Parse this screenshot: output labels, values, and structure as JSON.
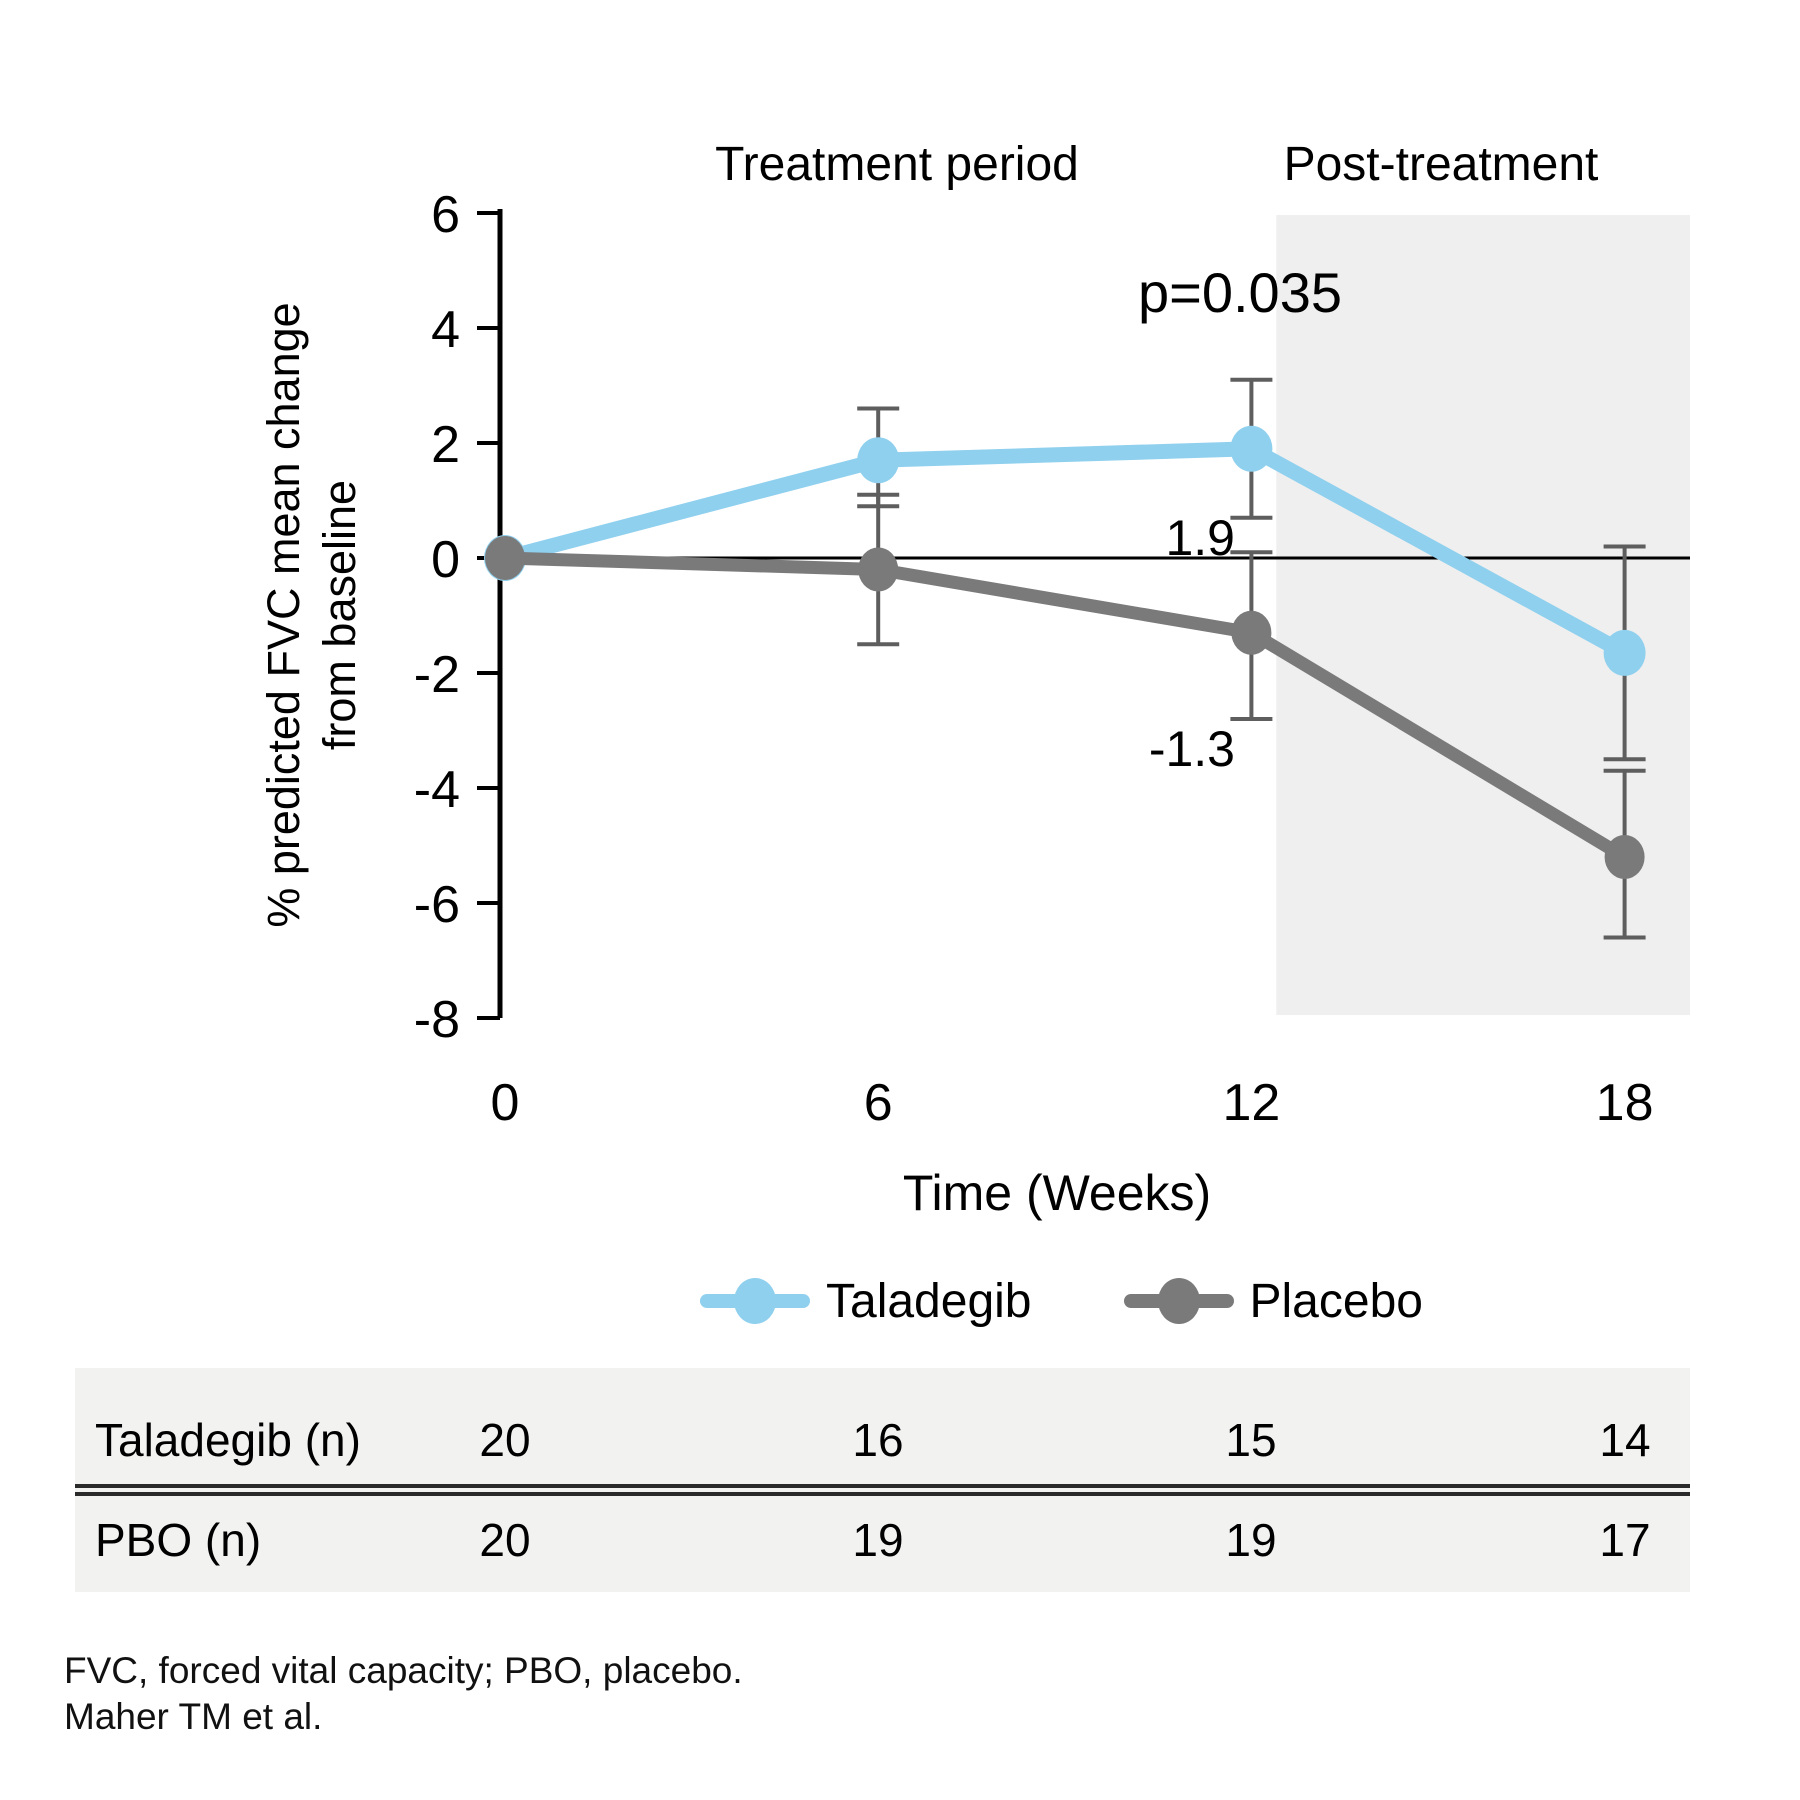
{
  "chart_data": {
    "type": "line",
    "title": "",
    "xlabel": "Time (Weeks)",
    "ylabel_line1": "% predicted FVC mean change",
    "ylabel_line2": "from baseline",
    "x": [
      0,
      6,
      12,
      18
    ],
    "x_ticks": [
      "0",
      "6",
      "12",
      "18"
    ],
    "y_ticks": [
      "6",
      "4",
      "2",
      "0",
      "-2",
      "-4",
      "-6",
      "-8"
    ],
    "ylim": [
      -8,
      6
    ],
    "xlim": [
      0,
      19
    ],
    "grid": false,
    "legend_position": "bottom",
    "series": [
      {
        "name": "Taladegib",
        "color": "#8fd0ee",
        "values": [
          0,
          1.7,
          1.9,
          -1.65
        ],
        "err_lo": [
          null,
          0.9,
          0.7,
          -3.5
        ],
        "err_hi": [
          null,
          2.6,
          3.1,
          0.2
        ]
      },
      {
        "name": "Placebo",
        "color": "#7a7a7a",
        "values": [
          0,
          -0.2,
          -1.3,
          -5.2
        ],
        "err_lo": [
          null,
          -1.5,
          -2.8,
          -6.6
        ],
        "err_hi": [
          null,
          1.1,
          0.1,
          -3.7
        ]
      }
    ],
    "regions": [
      {
        "label": "Treatment period",
        "shaded": false
      },
      {
        "label": "Post-treatment",
        "shaded": true,
        "from_week": 12.4
      }
    ],
    "annotations": [
      {
        "id": "p-value",
        "text": "p=0.035"
      },
      {
        "id": "taladegib-value",
        "text": "1.9"
      },
      {
        "id": "placebo-value",
        "text": "-1.3"
      }
    ],
    "colors": {
      "shade": "#efefef",
      "error_bar": "#5e5e5e",
      "axis": "#000000"
    }
  },
  "table": {
    "rows": [
      {
        "label": "Taladegib (n)",
        "values": [
          "20",
          "16",
          "15",
          "14"
        ]
      },
      {
        "label": "PBO (n)",
        "values": [
          "20",
          "19",
          "19",
          "17"
        ]
      }
    ]
  },
  "footnotes": {
    "line1": "FVC, forced vital capacity; PBO, placebo.",
    "line2": "Maher TM et al."
  }
}
